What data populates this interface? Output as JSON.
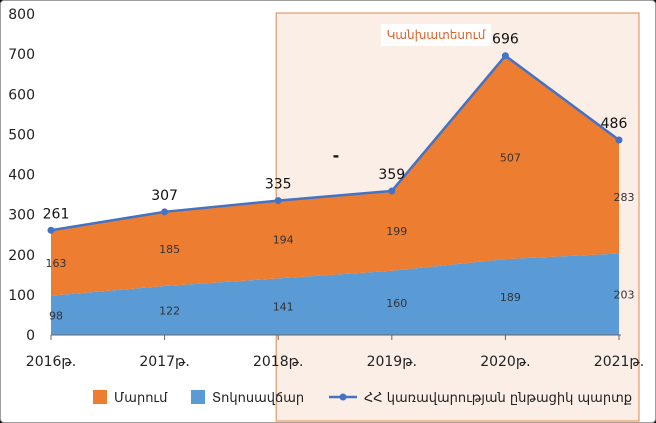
{
  "chart_data": {
    "type": "area",
    "categories": [
      "2016թ.",
      "2017թ.",
      "2018թ.",
      "2019թ.",
      "2020թ.",
      "2021թ."
    ],
    "ylim": [
      0,
      800
    ],
    "yticks": [
      0,
      100,
      200,
      300,
      400,
      500,
      600,
      700,
      800
    ],
    "series": [
      {
        "name": "Տոկոսավճար",
        "type": "area",
        "color": "#5b9bd5",
        "values": [
          98,
          122,
          141,
          160,
          189,
          203
        ]
      },
      {
        "name": "Մարում",
        "type": "area",
        "color": "#ed7d31",
        "values": [
          163,
          185,
          194,
          199,
          507,
          283
        ]
      },
      {
        "name": "ՀՀ կառավարության ընթացիկ պարտք",
        "type": "line",
        "color": "#4472c4",
        "values": [
          261,
          307,
          335,
          359,
          696,
          486
        ]
      }
    ],
    "forecast": {
      "label": "Կանխատեսում",
      "from": "2018թ.",
      "to": "2021թ."
    },
    "annotation": "-",
    "grid": false,
    "legend": "bottom"
  }
}
